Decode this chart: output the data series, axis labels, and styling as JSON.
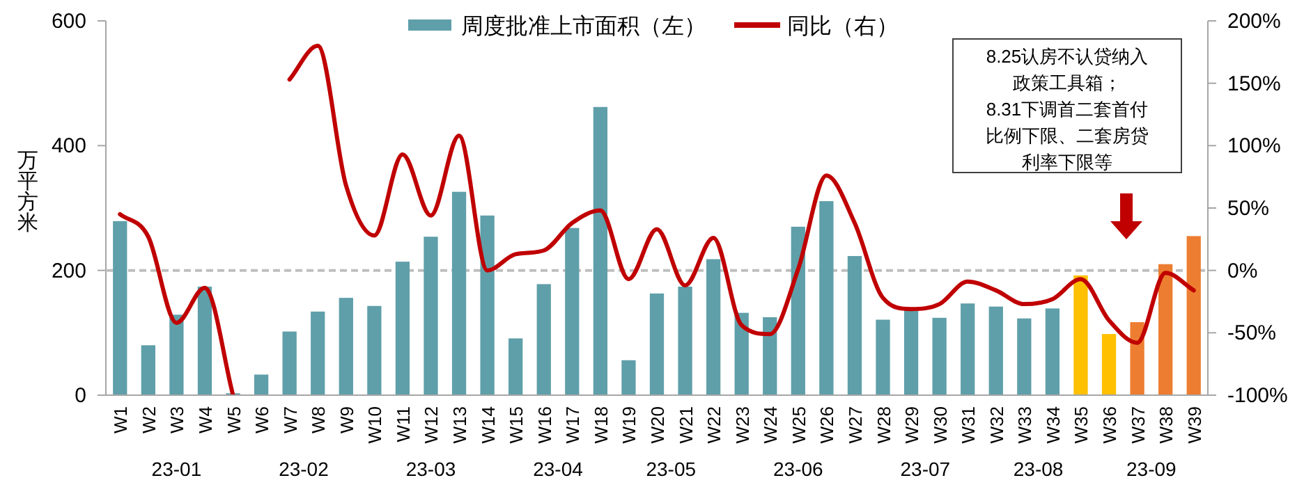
{
  "chart_data": {
    "type": "bar",
    "ylabel": "万平方米",
    "legend": "top",
    "categories": [
      "W1",
      "W2",
      "W3",
      "W4",
      "W5",
      "W6",
      "W7",
      "W8",
      "W9",
      "W10",
      "W11",
      "W12",
      "W13",
      "W14",
      "W15",
      "W16",
      "W17",
      "W18",
      "W19",
      "W20",
      "W21",
      "W22",
      "W23",
      "W24",
      "W25",
      "W26",
      "W27",
      "W28",
      "W29",
      "W30",
      "W31",
      "W32",
      "W33",
      "W34",
      "W35",
      "W36",
      "W37",
      "W38",
      "W39"
    ],
    "series": [
      {
        "name": "周度批准上市面积（左）",
        "color": "#5f9fa9",
        "colors": [
          "#5f9fa9",
          "#5f9fa9",
          "#5f9fa9",
          "#5f9fa9",
          "#5f9fa9",
          "#5f9fa9",
          "#5f9fa9",
          "#5f9fa9",
          "#5f9fa9",
          "#5f9fa9",
          "#5f9fa9",
          "#5f9fa9",
          "#5f9fa9",
          "#5f9fa9",
          "#5f9fa9",
          "#5f9fa9",
          "#5f9fa9",
          "#5f9fa9",
          "#5f9fa9",
          "#5f9fa9",
          "#5f9fa9",
          "#5f9fa9",
          "#5f9fa9",
          "#5f9fa9",
          "#5f9fa9",
          "#5f9fa9",
          "#5f9fa9",
          "#5f9fa9",
          "#5f9fa9",
          "#5f9fa9",
          "#5f9fa9",
          "#5f9fa9",
          "#5f9fa9",
          "#5f9fa9",
          "#ffc000",
          "#ffc000",
          "#ed7d31",
          "#ed7d31",
          "#ed7d31"
        ],
        "values": [
          279,
          80,
          129,
          174,
          3,
          33,
          102,
          134,
          156,
          143,
          214,
          254,
          326,
          288,
          91,
          178,
          268,
          462,
          56,
          163,
          174,
          218,
          132,
          125,
          270,
          311,
          223,
          121,
          137,
          124,
          147,
          142,
          123,
          139,
          192,
          98,
          117,
          210,
          255
        ]
      },
      {
        "name": "同比（右）",
        "type": "line",
        "axis": "y2",
        "color": "#c00000",
        "values": [
          45,
          27,
          -42,
          -14,
          -100,
          null,
          153,
          180,
          68,
          28,
          93,
          44,
          108,
          0,
          13,
          16,
          38,
          48,
          -7,
          33,
          -12,
          26,
          -44,
          -51,
          1,
          76,
          38,
          -22,
          -31,
          -27,
          -9,
          -16,
          -27,
          -23,
          -7,
          -40,
          -58,
          -2,
          -16
        ]
      }
    ],
    "ylim": [
      0,
      600
    ],
    "yticks": [
      0,
      200,
      400,
      600
    ],
    "y2lim": [
      -100,
      200
    ],
    "y2ticks": [
      {
        "value": -100,
        "label": "-100%"
      },
      {
        "value": -50,
        "label": "-50%"
      },
      {
        "value": 0,
        "label": "0%"
      },
      {
        "value": 50,
        "label": "50%"
      },
      {
        "value": 100,
        "label": "100%"
      },
      {
        "value": 150,
        "label": "150%"
      },
      {
        "value": 200,
        "label": "200%"
      }
    ],
    "ref_lines": [
      {
        "axis": "y2",
        "value": 0,
        "color": "#bfbfbf",
        "line_style": "dashed"
      }
    ],
    "annotations": [
      "8.25认房不认贷纳入政策工具箱；",
      "8.31下调首二套首付比例下限、二套房贷利率下限等",
      "23-01",
      "23-02",
      "23-03",
      "23-04",
      "23-05",
      "23-06",
      "23-07",
      "23-08",
      "23-09"
    ]
  }
}
